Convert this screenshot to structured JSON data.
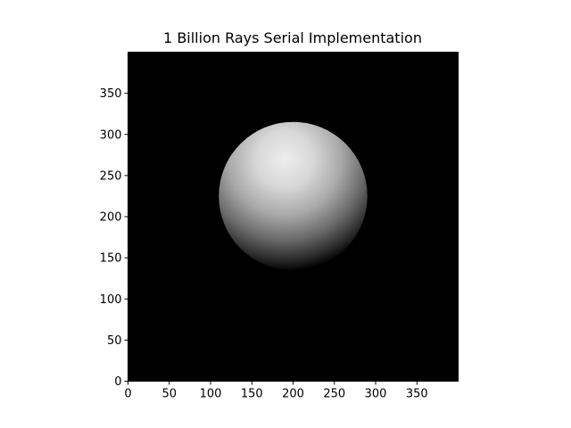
{
  "chart_data": {
    "type": "heatmap",
    "title": "1 Billion Rays Serial Implementation",
    "xlabel": "",
    "ylabel": "",
    "xlim": [
      0,
      400
    ],
    "ylim": [
      0,
      400
    ],
    "x_ticks": [
      0,
      50,
      100,
      150,
      200,
      250,
      300,
      350
    ],
    "y_ticks": [
      0,
      50,
      100,
      150,
      200,
      250,
      300,
      350
    ],
    "colormap": "grayscale",
    "background_color": "#000000",
    "grid": false,
    "legend": "none",
    "sphere": {
      "center": [
        200,
        225
      ],
      "radius": 90,
      "brightest_point": [
        190,
        270
      ]
    }
  }
}
